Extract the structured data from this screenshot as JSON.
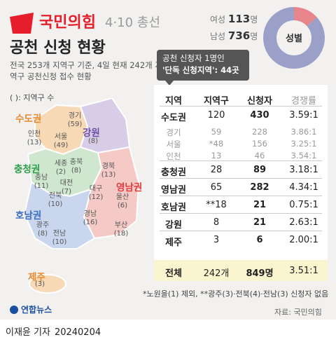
{
  "header": {
    "party": "국민의힘",
    "event": "4·10 총선",
    "title": "공천 신청 현황",
    "subtitle": "전국 253개 지역구 기준, 4일 현재 242개 지역구 공천신청 접수 현황"
  },
  "gender": {
    "female_label": "여성",
    "female_value": "113",
    "female_unit": "명",
    "male_label": "남성",
    "male_value": "736",
    "male_unit": "명",
    "donut_label": "성별",
    "colors": {
      "male": "#9aa0c8",
      "female": "#e8848b"
    }
  },
  "map": {
    "legend": "( ): 지역구 수",
    "regions": [
      {
        "name": "수도권",
        "color": "#e8892b"
      },
      {
        "name": "강원",
        "color": "#6f4fa3"
      },
      {
        "name": "충청권",
        "color": "#2e9e4a"
      },
      {
        "name": "영남권",
        "color": "#e23b3b"
      },
      {
        "name": "호남권",
        "color": "#3b6ec0"
      },
      {
        "name": "제주",
        "color": "#e8892b"
      }
    ],
    "subregions": [
      {
        "name": "경기",
        "count": "(59)"
      },
      {
        "name": "서울",
        "count": "(49)"
      },
      {
        "name": "인천",
        "count": "(13)"
      },
      {
        "name": "강원",
        "count": "(8)"
      },
      {
        "name": "세종",
        "count": "(2)"
      },
      {
        "name": "충북",
        "count": "(8)"
      },
      {
        "name": "충남",
        "count": "(11)"
      },
      {
        "name": "대전",
        "count": "(7)"
      },
      {
        "name": "경북",
        "count": "(13)"
      },
      {
        "name": "대구",
        "count": "(12)"
      },
      {
        "name": "울산",
        "count": "(6)"
      },
      {
        "name": "경남",
        "count": "(16)"
      },
      {
        "name": "부산",
        "count": "(18)"
      },
      {
        "name": "전북",
        "count": "(10)"
      },
      {
        "name": "광주",
        "count": "(8)"
      },
      {
        "name": "전남",
        "count": "(10)"
      },
      {
        "name": "제주",
        "count": "(3)"
      }
    ]
  },
  "callout": {
    "line1": "공천 신청자 1명인",
    "line2": "'단독 신청지역': 44곳"
  },
  "chart_data": {
    "type": "table",
    "columns": [
      "지역",
      "지역구",
      "신청자",
      "경쟁률"
    ],
    "rows": [
      {
        "region": "수도권",
        "districts": "120",
        "applicants": "430",
        "ratio": "3.59:1",
        "sub": false
      },
      {
        "region": "경기",
        "districts": "59",
        "applicants": "228",
        "ratio": "3.86:1",
        "sub": true
      },
      {
        "region": "서울",
        "districts": "*48",
        "applicants": "156",
        "ratio": "3.25:1",
        "sub": true
      },
      {
        "region": "인천",
        "districts": "13",
        "applicants": "46",
        "ratio": "3.54:1",
        "sub": true
      },
      {
        "region": "충청권",
        "districts": "28",
        "applicants": "89",
        "ratio": "3.18:1",
        "sub": false
      },
      {
        "region": "영남권",
        "districts": "65",
        "applicants": "282",
        "ratio": "4.34:1",
        "sub": false
      },
      {
        "region": "호남권",
        "districts": "**18",
        "applicants": "21",
        "ratio": "0.75:1",
        "sub": false
      },
      {
        "region": "강원",
        "districts": "8",
        "applicants": "21",
        "ratio": "2.63:1",
        "sub": false
      },
      {
        "region": "제주",
        "districts": "3",
        "applicants": "6",
        "ratio": "2.00:1",
        "sub": false
      }
    ],
    "total": {
      "region": "전체",
      "districts": "242개",
      "applicants": "849명",
      "ratio": "3.51:1"
    },
    "gender_split": {
      "female": 113,
      "male": 736
    }
  },
  "footnote": "*노원을(1) 제외, **광주(3)·전북(4)·전남(3) 신청자 없음",
  "source": "자료: 국민의힘",
  "agency": "연합뉴스",
  "byline": {
    "author": "이재윤 기자",
    "date": "20240204"
  }
}
